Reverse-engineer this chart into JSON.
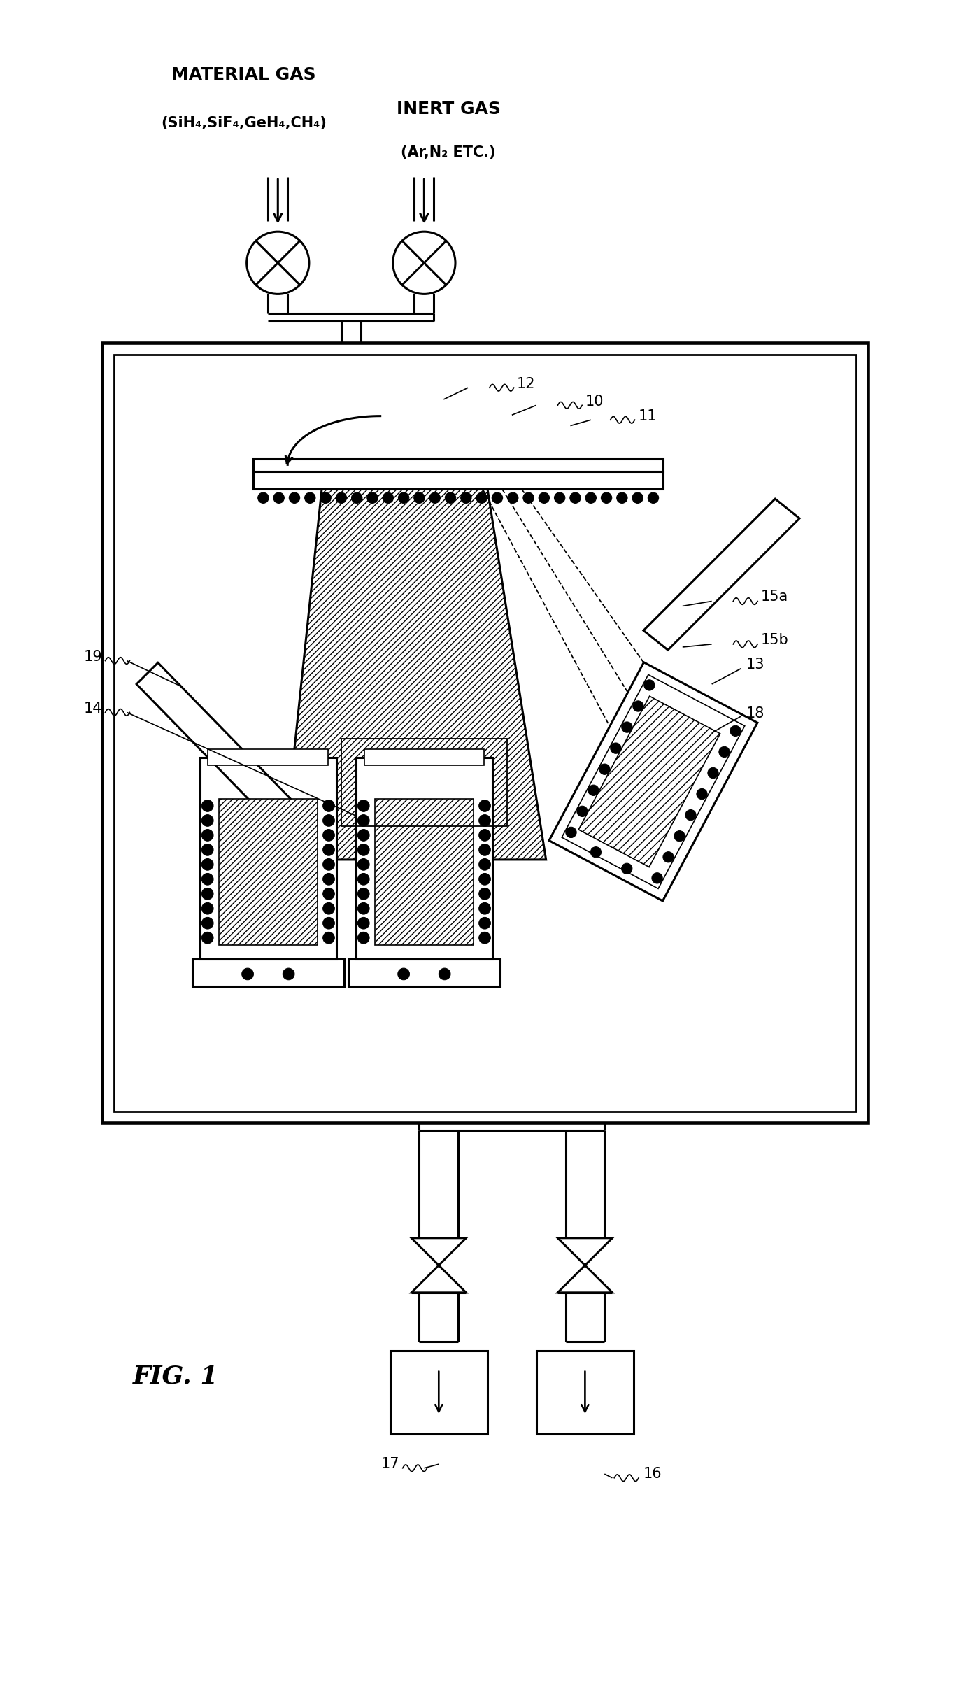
{
  "fig_label": "FIG. 1",
  "material_gas_label": "MATERIAL GAS",
  "material_gas_sub": "(SiH₄,SiF₄,GeH₄,CH₄)",
  "inert_gas_label": "INERT GAS",
  "inert_gas_sub": "(Ar,N₂ ETC.)",
  "bg_color": "#ffffff",
  "line_color": "#000000",
  "lw": 2.2,
  "thin_lw": 1.2,
  "label_fs": 15,
  "gas_fs": 18,
  "sub_fs": 15,
  "fig_fs": 26
}
